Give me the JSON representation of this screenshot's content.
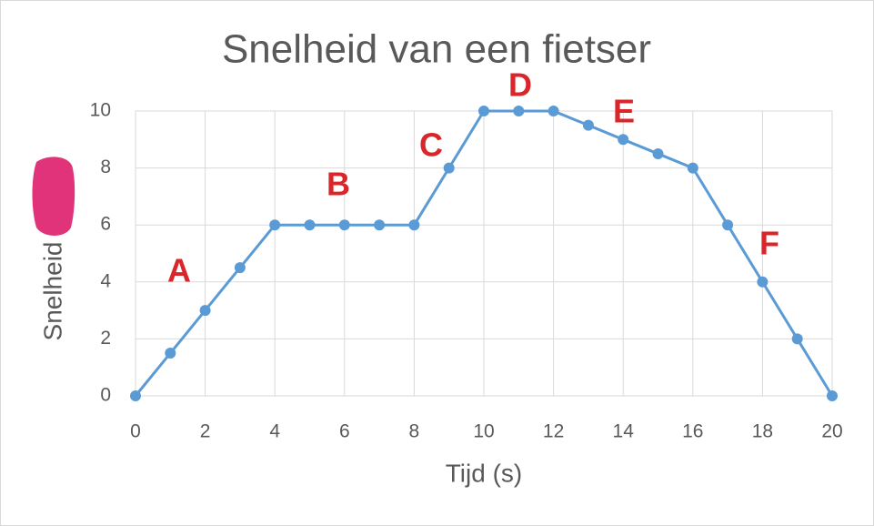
{
  "chart_data": {
    "type": "line",
    "title": "Snelheid van een fietser",
    "x_label": "Tijd (s)",
    "y_label": "Snelheid",
    "x": [
      0,
      1,
      2,
      3,
      4,
      5,
      6,
      7,
      8,
      9,
      10,
      11,
      12,
      13,
      14,
      15,
      16,
      17,
      18,
      19,
      20
    ],
    "series": [
      {
        "name": "Snelheid",
        "color": "#5b9bd5",
        "values": [
          0,
          1.5,
          3,
          4.5,
          6,
          6,
          6,
          6,
          6,
          8,
          10,
          10,
          10,
          9.5,
          9,
          8.5,
          8,
          6,
          4,
          2,
          0
        ]
      }
    ],
    "xlim": [
      0,
      20
    ],
    "xticks": [
      0,
      2,
      4,
      6,
      8,
      10,
      12,
      14,
      16,
      18,
      20
    ],
    "ylim": [
      0,
      10
    ],
    "yticks": [
      0,
      2,
      4,
      6,
      8,
      10
    ],
    "grid": true,
    "annotations": [
      "A",
      "B",
      "C",
      "D",
      "E",
      "F"
    ],
    "annotation_color": "#d9262b"
  }
}
